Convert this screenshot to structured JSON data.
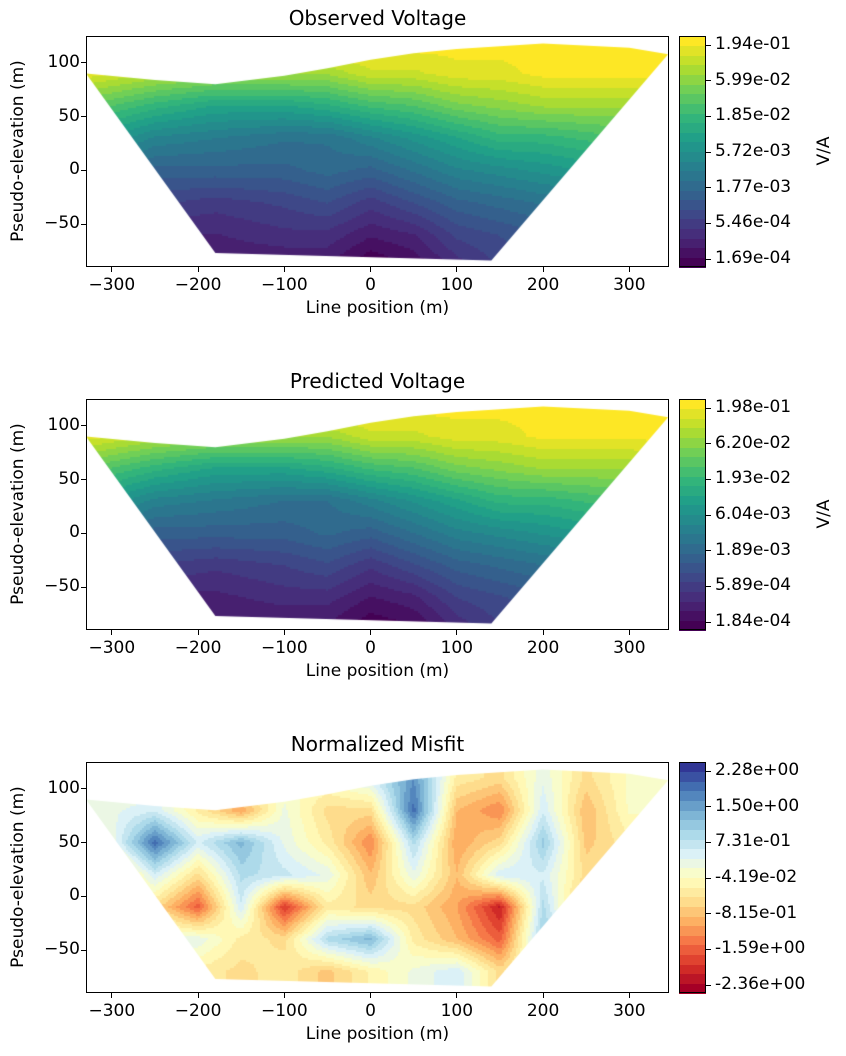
{
  "chart_data": [
    {
      "type": "heatmap",
      "title": "Observed Voltage",
      "xlabel": "Line position (m)",
      "ylabel": "Pseudo-elevation (m)",
      "xlim": [
        -330,
        346
      ],
      "ylim": [
        -90,
        125
      ],
      "xticks": [
        "−300",
        "−200",
        "−100",
        "0",
        "100",
        "200",
        "300"
      ],
      "xtick_values": [
        -300,
        -200,
        -100,
        0,
        100,
        200,
        300
      ],
      "yticks": [
        "100",
        "50",
        "0",
        "−50"
      ],
      "ytick_values": [
        100,
        50,
        0,
        -50
      ],
      "colormap": "viridis",
      "colorbar_scale": "log",
      "colorbar_label": "V/A",
      "colorbar_ticks": [
        "1.94e-01",
        "5.99e-02",
        "1.85e-02",
        "5.72e-03",
        "1.77e-03",
        "5.46e-04",
        "1.69e-04"
      ],
      "vrange": [
        0.000169,
        0.194
      ],
      "outline": [
        [
          -330,
          90
        ],
        [
          -250,
          84
        ],
        [
          -180,
          80
        ],
        [
          -100,
          88
        ],
        [
          -50,
          95
        ],
        [
          0,
          103
        ],
        [
          50,
          109
        ],
        [
          100,
          113
        ],
        [
          200,
          118
        ],
        [
          300,
          114
        ],
        [
          345,
          108
        ],
        [
          140,
          -84
        ],
        [
          -180,
          -77
        ]
      ],
      "grid_x": [
        -330,
        -250,
        -180,
        -100,
        -50,
        0,
        50,
        100,
        150,
        200,
        300,
        345
      ],
      "grid_y": [
        115,
        90,
        60,
        30,
        0,
        -30,
        -60,
        -85
      ],
      "values": [
        [
          0.16,
          0.16,
          0.16,
          0.16,
          0.16,
          0.16,
          0.16,
          0.16,
          0.16,
          0.16,
          0.16,
          0.16
        ],
        [
          0.13,
          0.079,
          0.063,
          0.063,
          0.063,
          0.1,
          0.1,
          0.13,
          0.13,
          0.16,
          0.16,
          0.16
        ],
        [
          0.032,
          0.016,
          0.01,
          0.01,
          0.013,
          0.02,
          0.025,
          0.04,
          0.05,
          0.063,
          0.063,
          0.1
        ],
        [
          0.01,
          0.004,
          0.0032,
          0.0025,
          0.0025,
          0.004,
          0.0063,
          0.01,
          0.016,
          0.016,
          0.025,
          0.032
        ],
        [
          0.0032,
          0.0016,
          0.0016,
          0.0016,
          0.002,
          0.0016,
          0.0025,
          0.004,
          0.005,
          0.0063,
          0.01,
          0.01
        ],
        [
          0.001,
          0.00079,
          0.00063,
          0.00079,
          0.001,
          0.00063,
          0.001,
          0.0016,
          0.002,
          0.0025,
          0.0032,
          0.0032
        ],
        [
          0.0005,
          0.0004,
          0.0004,
          0.0005,
          0.0005,
          0.00032,
          0.0004,
          0.00079,
          0.001,
          0.0013,
          0.0016,
          0.0016
        ],
        [
          0.0004,
          0.00032,
          0.00032,
          0.00032,
          0.00032,
          0.00018,
          0.00025,
          0.0005,
          0.00079,
          0.001,
          0.001,
          0.001
        ]
      ]
    },
    {
      "type": "heatmap",
      "title": "Predicted Voltage",
      "xlabel": "Line position (m)",
      "ylabel": "Pseudo-elevation (m)",
      "xlim": [
        -330,
        346
      ],
      "ylim": [
        -90,
        125
      ],
      "xticks": [
        "−300",
        "−200",
        "−100",
        "0",
        "100",
        "200",
        "300"
      ],
      "xtick_values": [
        -300,
        -200,
        -100,
        0,
        100,
        200,
        300
      ],
      "yticks": [
        "100",
        "50",
        "0",
        "−50"
      ],
      "ytick_values": [
        100,
        50,
        0,
        -50
      ],
      "colormap": "viridis",
      "colorbar_scale": "log",
      "colorbar_label": "V/A",
      "colorbar_ticks": [
        "1.98e-01",
        "6.20e-02",
        "1.93e-02",
        "6.04e-03",
        "1.89e-03",
        "5.89e-04",
        "1.84e-04"
      ],
      "vrange": [
        0.000184,
        0.198
      ],
      "outline": [
        [
          -330,
          90
        ],
        [
          -250,
          84
        ],
        [
          -180,
          80
        ],
        [
          -100,
          88
        ],
        [
          -50,
          95
        ],
        [
          0,
          103
        ],
        [
          50,
          109
        ],
        [
          100,
          113
        ],
        [
          200,
          118
        ],
        [
          300,
          114
        ],
        [
          345,
          108
        ],
        [
          140,
          -84
        ],
        [
          -180,
          -77
        ]
      ],
      "grid_x": [
        -330,
        -250,
        -180,
        -100,
        -50,
        0,
        50,
        100,
        150,
        200,
        300,
        345
      ],
      "grid_y": [
        115,
        90,
        60,
        30,
        0,
        -30,
        -60,
        -85
      ],
      "values": [
        [
          0.16,
          0.16,
          0.16,
          0.16,
          0.16,
          0.16,
          0.16,
          0.16,
          0.16,
          0.16,
          0.16,
          0.16
        ],
        [
          0.13,
          0.079,
          0.063,
          0.063,
          0.063,
          0.1,
          0.1,
          0.13,
          0.13,
          0.16,
          0.16,
          0.16
        ],
        [
          0.032,
          0.016,
          0.01,
          0.01,
          0.013,
          0.02,
          0.025,
          0.04,
          0.05,
          0.063,
          0.063,
          0.1
        ],
        [
          0.01,
          0.004,
          0.0032,
          0.0025,
          0.0025,
          0.004,
          0.0063,
          0.01,
          0.016,
          0.016,
          0.025,
          0.032
        ],
        [
          0.0032,
          0.0016,
          0.0016,
          0.0016,
          0.002,
          0.0016,
          0.0025,
          0.004,
          0.005,
          0.0063,
          0.01,
          0.01
        ],
        [
          0.001,
          0.00079,
          0.00063,
          0.00079,
          0.001,
          0.00063,
          0.001,
          0.0016,
          0.002,
          0.0025,
          0.0032,
          0.0032
        ],
        [
          0.0005,
          0.0004,
          0.0004,
          0.0005,
          0.0005,
          0.00032,
          0.0004,
          0.00079,
          0.001,
          0.0013,
          0.0016,
          0.0016
        ],
        [
          0.0004,
          0.00032,
          0.00032,
          0.00032,
          0.00032,
          0.0002,
          0.00025,
          0.0005,
          0.00079,
          0.001,
          0.001,
          0.001
        ]
      ]
    },
    {
      "type": "heatmap",
      "title": "Normalized Misfit",
      "xlabel": "Line position (m)",
      "ylabel": "Pseudo-elevation (m)",
      "xlim": [
        -330,
        346
      ],
      "ylim": [
        -90,
        125
      ],
      "xticks": [
        "−300",
        "−200",
        "−100",
        "0",
        "100",
        "200",
        "300"
      ],
      "xtick_values": [
        -300,
        -200,
        -100,
        0,
        100,
        200,
        300
      ],
      "yticks": [
        "100",
        "50",
        "0",
        "−50"
      ],
      "ytick_values": [
        100,
        50,
        0,
        -50
      ],
      "colormap": "RdYlBu",
      "colorbar_scale": "linear",
      "colorbar_label": "",
      "colorbar_ticks": [
        "2.28e+00",
        "1.50e+00",
        "7.31e-01",
        "-4.19e-02",
        "-8.15e-01",
        "-1.59e+00",
        "-2.36e+00"
      ],
      "vrange": [
        -2.36,
        2.28
      ],
      "outline": [
        [
          -330,
          90
        ],
        [
          -250,
          84
        ],
        [
          -180,
          80
        ],
        [
          -100,
          88
        ],
        [
          -50,
          95
        ],
        [
          0,
          103
        ],
        [
          50,
          109
        ],
        [
          100,
          113
        ],
        [
          200,
          118
        ],
        [
          300,
          114
        ],
        [
          345,
          108
        ],
        [
          140,
          -84
        ],
        [
          -180,
          -77
        ]
      ],
      "grid_x": [
        -300,
        -250,
        -200,
        -150,
        -100,
        -50,
        0,
        50,
        100,
        150,
        200,
        250,
        300
      ],
      "grid_y": [
        110,
        80,
        50,
        20,
        -10,
        -40,
        -70
      ],
      "values": [
        [
          0,
          0,
          0,
          0,
          0,
          0,
          0.5,
          1.5,
          -0.3,
          -0.5,
          0.3,
          -0.5,
          0
        ],
        [
          0.3,
          0.5,
          -0.3,
          -1.0,
          0.2,
          -0.5,
          -0.5,
          1.8,
          -0.8,
          -1.2,
          0.5,
          -0.8,
          0
        ],
        [
          0.2,
          1.8,
          0.5,
          1.2,
          0.3,
          -0.3,
          -1.2,
          0.8,
          -1.0,
          -0.5,
          1.0,
          -0.7,
          -0.3
        ],
        [
          -0.8,
          0.5,
          -0.5,
          0.8,
          0.6,
          0.3,
          -0.8,
          0.3,
          -0.8,
          0.5,
          0.5,
          -0.5,
          0
        ],
        [
          0,
          -0.5,
          -1.5,
          0.5,
          -1.8,
          -0.3,
          -0.5,
          -0.5,
          -1.0,
          -2.0,
          0.8,
          -1.0,
          0
        ],
        [
          0,
          0.3,
          0.3,
          -0.3,
          -0.5,
          0.8,
          1.2,
          -0.3,
          -0.8,
          -1.5,
          1.0,
          0.3,
          0
        ],
        [
          0,
          0,
          -0.3,
          -0.5,
          -0.3,
          -0.7,
          -0.2,
          0.2,
          0.5,
          -0.5,
          0.3,
          0,
          0
        ]
      ]
    }
  ],
  "colormaps": {
    "viridis": [
      "#440154",
      "#482878",
      "#3e4989",
      "#31688e",
      "#26828e",
      "#1f9e89",
      "#35b779",
      "#6ece58",
      "#b5de2b",
      "#fde725"
    ],
    "RdYlBu": [
      "#a50026",
      "#d73027",
      "#f46d43",
      "#fdae61",
      "#fee090",
      "#ffffbf",
      "#e0f3f8",
      "#abd9e9",
      "#74add1",
      "#4575b4",
      "#313695"
    ]
  }
}
